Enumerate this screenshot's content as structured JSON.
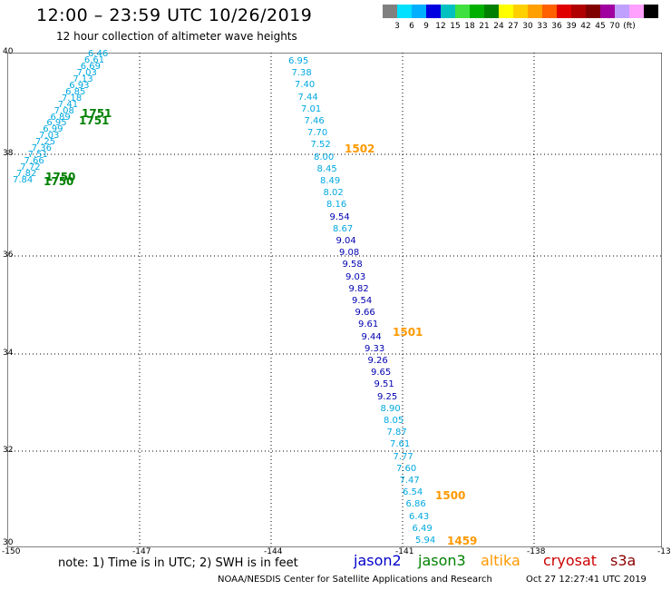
{
  "header": {
    "title": "12:00 – 23:59 UTC 10/26/2019",
    "subtitle": "12 hour collection of altimeter wave heights"
  },
  "colorbar": {
    "colors": [
      "#808080",
      "#00e0ff",
      "#00b0ff",
      "#0000e0",
      "#00c0c0",
      "#40e040",
      "#00b000",
      "#008000",
      "#ffff00",
      "#ffd000",
      "#ffa000",
      "#ff6000",
      "#e00000",
      "#b00000",
      "#800000",
      "#a000a0",
      "#c0a0ff",
      "#ffa0ff",
      "#000000"
    ],
    "labels": [
      "3",
      "6",
      "9",
      "12",
      "15",
      "18",
      "21",
      "24",
      "27",
      "30",
      "33",
      "36",
      "39",
      "42",
      "45",
      "70",
      "(ft)"
    ]
  },
  "axes": {
    "lon_labels": [
      "-150",
      "-147",
      "-144",
      "-141",
      "-138",
      "-13"
    ],
    "lat_labels": [
      "40",
      "38",
      "36",
      "34",
      "32",
      "30"
    ]
  },
  "track_east": {
    "values": [
      "6.95",
      "7.38",
      "7.40",
      "7.44",
      "7.01",
      "7.46",
      "7.70",
      "7.52",
      "8.00",
      "8.45",
      "8.49",
      "8.02",
      "8.16",
      "9.54",
      "8.67",
      "9.04",
      "9.08",
      "9.58",
      "9.03",
      "9.82",
      "9.54",
      "9.66",
      "9.61",
      "9.44",
      "9.33",
      "9.26",
      "9.65",
      "9.51",
      "9.25",
      "8.90",
      "8.05",
      "7.87",
      "7.61",
      "7.77",
      "7.60",
      "7.47",
      "6.54",
      "6.86",
      "6.43",
      "6.49",
      "5.94"
    ]
  },
  "track_east_times": [
    {
      "label": "1502",
      "sat": "altika"
    },
    {
      "label": "1501",
      "sat": "altika"
    },
    {
      "label": "1500",
      "sat": "altika"
    },
    {
      "label": "1459",
      "sat": "altika"
    }
  ],
  "track_west": {
    "values": [
      "6.46",
      "6.61",
      "6.69",
      "7.03",
      "7.13",
      "6.93",
      "6.85",
      "7.18",
      "7.41",
      "7.08",
      "6.89",
      "6.95",
      "6.99",
      "7.03",
      "7.25",
      "7.36",
      "7.51",
      "7.66",
      "7.72",
      "7.82",
      "7.84"
    ]
  },
  "track_west_times": [
    {
      "label": "1751",
      "sat": "jason3"
    },
    {
      "label": "1751",
      "sat": "jason3"
    },
    {
      "label": "1750",
      "sat": "jason3"
    },
    {
      "label": "1750",
      "sat": "jason3"
    }
  ],
  "note": "note:  1) Time is in UTC;  2) SWH is in feet",
  "legend": [
    {
      "name": "jason2",
      "color": "#0000cc"
    },
    {
      "name": "jason3",
      "color": "#008000"
    },
    {
      "name": "altika",
      "color": "#ff9900"
    },
    {
      "name": "cryosat",
      "color": "#cc0000"
    },
    {
      "name": "s3a",
      "color": "#8b0000"
    }
  ],
  "footer": {
    "credit": "NOAA/NESDIS Center for Satellite Applications and Research",
    "timestamp": "Oct 27 12:27:41 UTC 2019"
  }
}
